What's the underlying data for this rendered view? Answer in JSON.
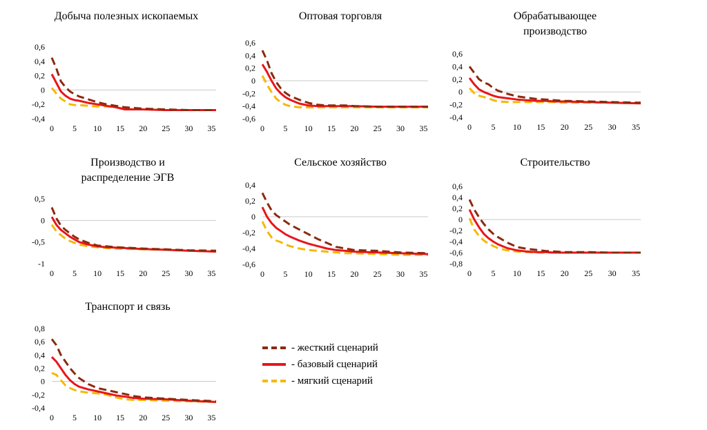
{
  "colors": {
    "hard": "#8B2A0E",
    "base": "#E8151B",
    "soft": "#F5B800",
    "zero": "#c8c8c8"
  },
  "legend": [
    {
      "key": "hard",
      "label": "- жесткий сценарий"
    },
    {
      "key": "base",
      "label": "- базовый сценарий"
    },
    {
      "key": "soft",
      "label": "- мягкий сценарий"
    }
  ],
  "chart_data": [
    {
      "type": "line",
      "title": [
        "Добыча полезных ископаемых"
      ],
      "x_ticks": [
        0,
        5,
        10,
        15,
        20,
        25,
        30,
        35
      ],
      "y_ticks": [
        0.6,
        0.4,
        0.2,
        0,
        -0.2,
        -0.4
      ],
      "y_tick_labels": [
        "0,6",
        "0,4",
        "0,2",
        "0",
        "-0,2",
        "-0,4"
      ],
      "ylim": [
        -0.4,
        0.6
      ],
      "xlim": [
        0,
        36
      ],
      "series": [
        {
          "key": "hard",
          "x": [
            0,
            1,
            2,
            3,
            4,
            5,
            6,
            8,
            10,
            12,
            14,
            16,
            18,
            20,
            25,
            30,
            36
          ],
          "y": [
            0.45,
            0.3,
            0.12,
            0.04,
            -0.02,
            -0.06,
            -0.09,
            -0.13,
            -0.17,
            -0.2,
            -0.22,
            -0.24,
            -0.25,
            -0.26,
            -0.27,
            -0.28,
            -0.28
          ]
        },
        {
          "key": "base",
          "x": [
            0,
            1,
            2,
            3,
            4,
            5,
            6,
            8,
            10,
            12,
            14,
            16,
            18,
            20,
            25,
            30,
            36
          ],
          "y": [
            0.22,
            0.1,
            -0.02,
            -0.08,
            -0.12,
            -0.14,
            -0.15,
            -0.18,
            -0.2,
            -0.22,
            -0.24,
            -0.27,
            -0.27,
            -0.27,
            -0.28,
            -0.28,
            -0.28
          ]
        },
        {
          "key": "soft",
          "x": [
            0,
            1,
            2,
            3,
            4,
            5,
            6,
            8,
            10,
            12,
            14,
            16,
            18,
            20,
            25,
            30,
            36
          ],
          "y": [
            0.03,
            -0.05,
            -0.12,
            -0.16,
            -0.2,
            -0.21,
            -0.21,
            -0.22,
            -0.23,
            -0.23,
            -0.24,
            -0.26,
            -0.27,
            -0.27,
            -0.28,
            -0.28,
            -0.28
          ]
        }
      ]
    },
    {
      "type": "line",
      "title": [
        "Оптовая торговля"
      ],
      "x_ticks": [
        0,
        5,
        10,
        15,
        20,
        25,
        30,
        35
      ],
      "y_ticks": [
        0.6,
        0.4,
        0.2,
        0,
        -0.2,
        -0.4,
        -0.6
      ],
      "y_tick_labels": [
        "0,6",
        "0,4",
        "0,2",
        "0",
        "-0,2",
        "-0,4",
        "-0,6"
      ],
      "ylim": [
        -0.6,
        0.6
      ],
      "xlim": [
        0,
        36
      ],
      "series": [
        {
          "key": "hard",
          "x": [
            0,
            1,
            2,
            3,
            4,
            5,
            6,
            8,
            10,
            12,
            14,
            16,
            18,
            20,
            25,
            30,
            36
          ],
          "y": [
            0.48,
            0.32,
            0.12,
            -0.02,
            -0.12,
            -0.19,
            -0.24,
            -0.3,
            -0.35,
            -0.38,
            -0.39,
            -0.39,
            -0.39,
            -0.4,
            -0.41,
            -0.41,
            -0.41
          ]
        },
        {
          "key": "base",
          "x": [
            0,
            1,
            2,
            3,
            4,
            5,
            6,
            8,
            10,
            12,
            14,
            16,
            18,
            20,
            25,
            30,
            36
          ],
          "y": [
            0.26,
            0.14,
            0.0,
            -0.12,
            -0.2,
            -0.26,
            -0.3,
            -0.36,
            -0.39,
            -0.4,
            -0.4,
            -0.4,
            -0.4,
            -0.4,
            -0.41,
            -0.41,
            -0.41
          ]
        },
        {
          "key": "soft",
          "x": [
            0,
            1,
            2,
            3,
            4,
            5,
            6,
            8,
            10,
            12,
            14,
            16,
            18,
            20,
            25,
            30,
            36
          ],
          "y": [
            0.08,
            -0.06,
            -0.18,
            -0.28,
            -0.34,
            -0.38,
            -0.4,
            -0.42,
            -0.42,
            -0.42,
            -0.42,
            -0.42,
            -0.42,
            -0.42,
            -0.42,
            -0.42,
            -0.42
          ]
        }
      ]
    },
    {
      "type": "line",
      "title": [
        "Обрабатывающее",
        "производство"
      ],
      "x_ticks": [
        0,
        5,
        10,
        15,
        20,
        25,
        30,
        35
      ],
      "y_ticks": [
        0.6,
        0.4,
        0.2,
        0,
        -0.2,
        -0.4
      ],
      "y_tick_labels": [
        "0,6",
        "0,4",
        "0,2",
        "0",
        "-0,2",
        "-0,4"
      ],
      "ylim": [
        -0.4,
        0.6
      ],
      "xlim": [
        0,
        36
      ],
      "series": [
        {
          "key": "hard",
          "x": [
            0,
            1,
            2,
            3,
            4,
            5,
            6,
            8,
            10,
            12,
            14,
            16,
            18,
            20,
            25,
            30,
            36
          ],
          "y": [
            0.4,
            0.3,
            0.2,
            0.15,
            0.12,
            0.06,
            0.02,
            -0.03,
            -0.07,
            -0.09,
            -0.11,
            -0.12,
            -0.13,
            -0.14,
            -0.15,
            -0.16,
            -0.17
          ]
        },
        {
          "key": "base",
          "x": [
            0,
            1,
            2,
            3,
            4,
            5,
            6,
            8,
            10,
            12,
            14,
            16,
            18,
            20,
            25,
            30,
            36
          ],
          "y": [
            0.22,
            0.12,
            0.04,
            0.0,
            -0.03,
            -0.06,
            -0.08,
            -0.1,
            -0.12,
            -0.13,
            -0.14,
            -0.14,
            -0.15,
            -0.15,
            -0.16,
            -0.17,
            -0.18
          ]
        },
        {
          "key": "soft",
          "x": [
            0,
            1,
            2,
            3,
            4,
            5,
            6,
            8,
            10,
            12,
            14,
            16,
            18,
            20,
            25,
            30,
            36
          ],
          "y": [
            0.06,
            -0.02,
            -0.06,
            -0.08,
            -0.1,
            -0.13,
            -0.15,
            -0.16,
            -0.16,
            -0.16,
            -0.16,
            -0.16,
            -0.16,
            -0.17,
            -0.17,
            -0.17,
            -0.18
          ]
        }
      ]
    },
    {
      "type": "line",
      "title": [
        "Производство и",
        "распределение ЭГВ"
      ],
      "x_ticks": [
        0,
        5,
        10,
        15,
        20,
        25,
        30,
        35
      ],
      "y_ticks": [
        0.5,
        0,
        -0.5,
        -1
      ],
      "y_tick_labels": [
        "0,5",
        "0",
        "-0,5",
        "-1"
      ],
      "ylim": [
        -1,
        0.5
      ],
      "xlim": [
        0,
        36
      ],
      "series": [
        {
          "key": "hard",
          "x": [
            0,
            1,
            2,
            3,
            4,
            5,
            6,
            8,
            10,
            12,
            14,
            16,
            18,
            20,
            25,
            30,
            36
          ],
          "y": [
            0.3,
            0.05,
            -0.12,
            -0.22,
            -0.3,
            -0.38,
            -0.44,
            -0.52,
            -0.58,
            -0.6,
            -0.62,
            -0.63,
            -0.64,
            -0.65,
            -0.67,
            -0.69,
            -0.7
          ]
        },
        {
          "key": "base",
          "x": [
            0,
            1,
            2,
            3,
            4,
            5,
            6,
            8,
            10,
            12,
            14,
            16,
            18,
            20,
            25,
            30,
            36
          ],
          "y": [
            0.08,
            -0.1,
            -0.22,
            -0.3,
            -0.38,
            -0.44,
            -0.5,
            -0.56,
            -0.6,
            -0.62,
            -0.63,
            -0.64,
            -0.65,
            -0.66,
            -0.68,
            -0.7,
            -0.72
          ]
        },
        {
          "key": "soft",
          "x": [
            0,
            1,
            2,
            3,
            4,
            5,
            6,
            8,
            10,
            12,
            14,
            16,
            18,
            20,
            25,
            30,
            36
          ],
          "y": [
            -0.1,
            -0.25,
            -0.34,
            -0.42,
            -0.48,
            -0.52,
            -0.56,
            -0.6,
            -0.62,
            -0.64,
            -0.65,
            -0.66,
            -0.66,
            -0.67,
            -0.68,
            -0.7,
            -0.72
          ]
        }
      ]
    },
    {
      "type": "line",
      "title": [
        "Сельское хозяйство"
      ],
      "x_ticks": [
        0,
        5,
        10,
        15,
        20,
        25,
        30,
        35
      ],
      "y_ticks": [
        0.4,
        0.2,
        0,
        -0.2,
        -0.4,
        -0.6
      ],
      "y_tick_labels": [
        "0,4",
        "0,2",
        "0",
        "-0,2",
        "-0,4",
        "-0,6"
      ],
      "ylim": [
        -0.6,
        0.4
      ],
      "xlim": [
        0,
        36
      ],
      "series": [
        {
          "key": "hard",
          "x": [
            0,
            1,
            2,
            3,
            4,
            5,
            6,
            8,
            10,
            12,
            14,
            16,
            18,
            20,
            25,
            30,
            36
          ],
          "y": [
            0.3,
            0.18,
            0.08,
            0.02,
            -0.02,
            -0.06,
            -0.1,
            -0.16,
            -0.22,
            -0.28,
            -0.33,
            -0.38,
            -0.4,
            -0.42,
            -0.43,
            -0.45,
            -0.46
          ]
        },
        {
          "key": "base",
          "x": [
            0,
            1,
            2,
            3,
            4,
            5,
            6,
            8,
            10,
            12,
            14,
            16,
            18,
            20,
            25,
            30,
            36
          ],
          "y": [
            0.12,
            0.0,
            -0.08,
            -0.14,
            -0.18,
            -0.22,
            -0.25,
            -0.3,
            -0.34,
            -0.37,
            -0.4,
            -0.42,
            -0.43,
            -0.44,
            -0.45,
            -0.46,
            -0.47
          ]
        },
        {
          "key": "soft",
          "x": [
            0,
            1,
            2,
            3,
            4,
            5,
            6,
            8,
            10,
            12,
            14,
            16,
            18,
            20,
            25,
            30,
            36
          ],
          "y": [
            -0.06,
            -0.18,
            -0.26,
            -0.3,
            -0.32,
            -0.35,
            -0.37,
            -0.4,
            -0.42,
            -0.43,
            -0.44,
            -0.45,
            -0.46,
            -0.46,
            -0.47,
            -0.48,
            -0.48
          ]
        }
      ]
    },
    {
      "type": "line",
      "title": [
        "Строительство"
      ],
      "x_ticks": [
        0,
        5,
        10,
        15,
        20,
        25,
        30,
        35
      ],
      "y_ticks": [
        0.6,
        0.4,
        0.2,
        0,
        -0.2,
        -0.4,
        -0.6,
        -0.8
      ],
      "y_tick_labels": [
        "0,6",
        "0,4",
        "0,2",
        "0",
        "-0,2",
        "-0,4",
        "-0,6",
        "-0,8"
      ],
      "ylim": [
        -0.8,
        0.6
      ],
      "xlim": [
        0,
        36
      ],
      "series": [
        {
          "key": "hard",
          "x": [
            0,
            1,
            2,
            3,
            4,
            5,
            6,
            8,
            10,
            12,
            14,
            16,
            18,
            20,
            25,
            30,
            36
          ],
          "y": [
            0.36,
            0.18,
            0.04,
            -0.08,
            -0.18,
            -0.26,
            -0.32,
            -0.42,
            -0.5,
            -0.53,
            -0.55,
            -0.57,
            -0.58,
            -0.59,
            -0.59,
            -0.6,
            -0.6
          ]
        },
        {
          "key": "base",
          "x": [
            0,
            1,
            2,
            3,
            4,
            5,
            6,
            8,
            10,
            12,
            14,
            16,
            18,
            20,
            25,
            30,
            36
          ],
          "y": [
            0.18,
            0.0,
            -0.14,
            -0.26,
            -0.34,
            -0.4,
            -0.45,
            -0.52,
            -0.56,
            -0.58,
            -0.59,
            -0.59,
            -0.6,
            -0.6,
            -0.6,
            -0.6,
            -0.6
          ]
        },
        {
          "key": "soft",
          "x": [
            0,
            1,
            2,
            3,
            4,
            5,
            6,
            8,
            10,
            12,
            14,
            16,
            18,
            20,
            25,
            30,
            36
          ],
          "y": [
            0.02,
            -0.18,
            -0.3,
            -0.38,
            -0.44,
            -0.48,
            -0.52,
            -0.56,
            -0.58,
            -0.59,
            -0.6,
            -0.6,
            -0.6,
            -0.6,
            -0.6,
            -0.6,
            -0.6
          ]
        }
      ]
    },
    {
      "type": "line",
      "title": [
        "Транспорт и связь"
      ],
      "x_ticks": [
        0,
        5,
        10,
        15,
        20,
        25,
        30,
        35
      ],
      "y_ticks": [
        0.8,
        0.6,
        0.4,
        0.2,
        0,
        -0.2,
        -0.4
      ],
      "y_tick_labels": [
        "0,8",
        "0,6",
        "0,4",
        "0,2",
        "0",
        "-0,2",
        "-0,4"
      ],
      "ylim": [
        -0.4,
        0.8
      ],
      "xlim": [
        0,
        36
      ],
      "series": [
        {
          "key": "hard",
          "x": [
            0,
            1,
            2,
            3,
            4,
            5,
            6,
            8,
            10,
            12,
            14,
            16,
            18,
            20,
            25,
            30,
            36
          ],
          "y": [
            0.64,
            0.55,
            0.4,
            0.3,
            0.2,
            0.12,
            0.05,
            -0.04,
            -0.1,
            -0.13,
            -0.16,
            -0.19,
            -0.22,
            -0.24,
            -0.26,
            -0.28,
            -0.3
          ]
        },
        {
          "key": "base",
          "x": [
            0,
            1,
            2,
            3,
            4,
            5,
            6,
            8,
            10,
            12,
            14,
            16,
            18,
            20,
            25,
            30,
            36
          ],
          "y": [
            0.37,
            0.3,
            0.2,
            0.1,
            0.02,
            -0.04,
            -0.08,
            -0.12,
            -0.15,
            -0.18,
            -0.21,
            -0.23,
            -0.25,
            -0.26,
            -0.27,
            -0.29,
            -0.31
          ]
        },
        {
          "key": "soft",
          "x": [
            0,
            1,
            2,
            3,
            4,
            5,
            6,
            8,
            10,
            12,
            14,
            16,
            18,
            20,
            25,
            30,
            36
          ],
          "y": [
            0.13,
            0.1,
            0.02,
            -0.06,
            -0.1,
            -0.13,
            -0.15,
            -0.17,
            -0.18,
            -0.2,
            -0.24,
            -0.27,
            -0.28,
            -0.28,
            -0.29,
            -0.3,
            -0.31
          ]
        }
      ]
    }
  ]
}
